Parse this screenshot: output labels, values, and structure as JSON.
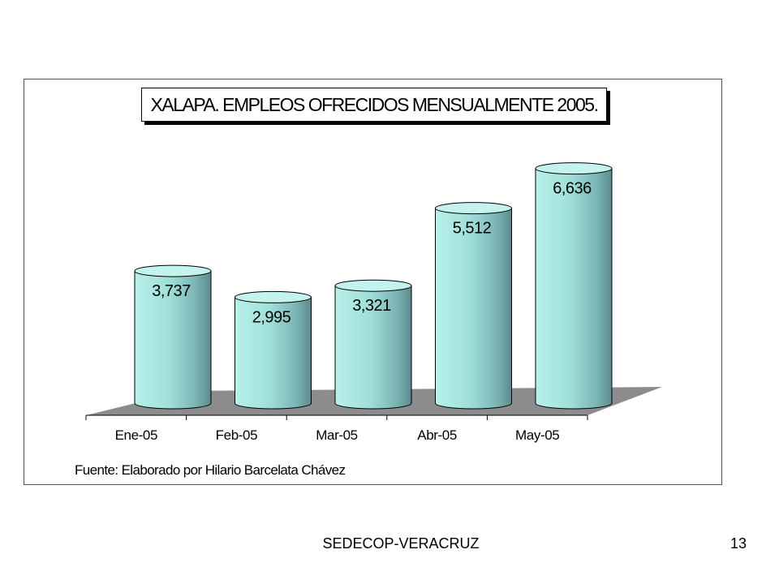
{
  "chart_data": {
    "type": "bar",
    "title": "XALAPA. EMPLEOS OFRECIDOS MENSUALMENTE 2005.",
    "categories": [
      "Ene-05",
      "Feb-05",
      "Mar-05",
      "Abr-05",
      "May-05"
    ],
    "values": [
      3737,
      2995,
      3321,
      5512,
      6636
    ],
    "value_labels": [
      "3,737",
      "2,995",
      "3,321",
      "5,512",
      "6,636"
    ],
    "ylim": [
      0,
      7000
    ],
    "grid": false,
    "legend": "none",
    "style": "3d-cylinder"
  },
  "colors": {
    "bar_fill": "#9fe2dc",
    "bar_shadow": "#5f8f90",
    "floor": "#8c8c8c"
  },
  "source_note": "Fuente: Elaborado por Hilario Barcelata Chávez",
  "footer": {
    "left": "SEDECOP-VERACRUZ",
    "page_number": "13"
  }
}
